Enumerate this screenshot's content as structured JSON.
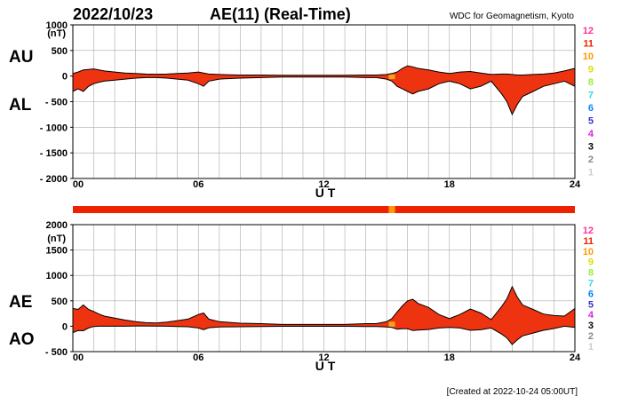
{
  "header": {
    "date": "2022/10/23",
    "title": "AE(11) (Real-Time)",
    "source": "WDC for Geomagnetism, Kyoto"
  },
  "footer": {
    "created": "[Created at 2022-10-24 05:00UT]"
  },
  "colors": {
    "fill": "#ee3311",
    "highlight": "#f5a020",
    "line": "#000000",
    "grid": "#aaaaaa"
  },
  "station_legend": [
    {
      "label": "12",
      "color": "#ff3399"
    },
    {
      "label": "11",
      "color": "#ee2200"
    },
    {
      "label": "10",
      "color": "#ff9900"
    },
    {
      "label": "9",
      "color": "#dddd00"
    },
    {
      "label": "8",
      "color": "#99ee33"
    },
    {
      "label": "7",
      "color": "#33dddd"
    },
    {
      "label": "6",
      "color": "#0088ff"
    },
    {
      "label": "5",
      "color": "#3333cc"
    },
    {
      "label": "4",
      "color": "#dd22dd"
    },
    {
      "label": "3",
      "color": "#000000"
    },
    {
      "label": "2",
      "color": "#888888"
    },
    {
      "label": "1",
      "color": "#cccccc"
    }
  ],
  "station_bar": {
    "default_count": "11",
    "segments": [
      {
        "start": 0,
        "end": 15.1,
        "count": "11"
      },
      {
        "start": 15.1,
        "end": 15.4,
        "count": "10"
      },
      {
        "start": 15.4,
        "end": 24,
        "count": "11"
      }
    ]
  },
  "chart_data": [
    {
      "type": "area",
      "name": "AU/AL",
      "labels": [
        "AU",
        "AL"
      ],
      "unit": "(nT)",
      "xlabel": "U T",
      "xlim": [
        0,
        24
      ],
      "xticks": [
        "00",
        "06",
        "12",
        "18",
        "24"
      ],
      "xtick_values": [
        0,
        6,
        12,
        18,
        24
      ],
      "ylim": [
        -2000,
        1000
      ],
      "yticks": [
        1000,
        500,
        0,
        -500,
        -1000,
        -1500,
        -2000
      ],
      "ytick_labels": [
        "1000",
        "500",
        "0",
        "- 500",
        "- 1000",
        "- 1500",
        "- 2000"
      ],
      "grid": true,
      "x": [
        0,
        0.25,
        0.5,
        0.75,
        1,
        1.25,
        1.5,
        2,
        2.5,
        3,
        3.5,
        4,
        4.5,
        5,
        5.5,
        6,
        6.25,
        6.5,
        7,
        7.5,
        8,
        9,
        10,
        11,
        12,
        13,
        14,
        14.5,
        15,
        15.25,
        15.5,
        15.75,
        16,
        16.25,
        16.5,
        17,
        17.5,
        18,
        18.5,
        19,
        19.5,
        20,
        20.5,
        20.75,
        21,
        21.25,
        21.5,
        22,
        22.5,
        23,
        23.5,
        24
      ],
      "series": [
        {
          "name": "AU",
          "values": [
            50,
            80,
            120,
            130,
            140,
            120,
            100,
            80,
            60,
            50,
            40,
            35,
            40,
            50,
            60,
            80,
            60,
            40,
            30,
            25,
            20,
            20,
            15,
            15,
            15,
            15,
            20,
            20,
            30,
            50,
            80,
            150,
            200,
            180,
            150,
            120,
            80,
            50,
            80,
            90,
            60,
            30,
            40,
            40,
            30,
            20,
            20,
            30,
            40,
            60,
            100,
            150
          ]
        },
        {
          "name": "AL",
          "values": [
            -300,
            -250,
            -300,
            -200,
            -150,
            -120,
            -100,
            -80,
            -60,
            -40,
            -30,
            -30,
            -40,
            -60,
            -80,
            -150,
            -200,
            -100,
            -60,
            -50,
            -40,
            -30,
            -20,
            -20,
            -20,
            -20,
            -30,
            -30,
            -60,
            -100,
            -200,
            -250,
            -300,
            -350,
            -300,
            -250,
            -150,
            -100,
            -150,
            -250,
            -200,
            -100,
            -350,
            -500,
            -750,
            -550,
            -400,
            -300,
            -200,
            -150,
            -100,
            -200
          ]
        }
      ]
    },
    {
      "type": "area",
      "name": "AE/AO",
      "labels": [
        "AE",
        "AO"
      ],
      "unit": "(nT)",
      "xlabel": "U T",
      "xlim": [
        0,
        24
      ],
      "xticks": [
        "00",
        "06",
        "12",
        "18",
        "24"
      ],
      "xtick_values": [
        0,
        6,
        12,
        18,
        24
      ],
      "ylim": [
        -500,
        2000
      ],
      "yticks": [
        2000,
        1500,
        1000,
        500,
        0,
        -500
      ],
      "ytick_labels": [
        "2000",
        "1500",
        "1000",
        "500",
        "0",
        "- 500"
      ],
      "grid": true,
      "x": [
        0,
        0.25,
        0.5,
        0.75,
        1,
        1.25,
        1.5,
        2,
        2.5,
        3,
        3.5,
        4,
        4.5,
        5,
        5.5,
        6,
        6.25,
        6.5,
        7,
        7.5,
        8,
        9,
        10,
        11,
        12,
        13,
        14,
        14.5,
        15,
        15.25,
        15.5,
        15.75,
        16,
        16.25,
        16.5,
        17,
        17.5,
        18,
        18.5,
        19,
        19.5,
        20,
        20.5,
        20.75,
        21,
        21.25,
        21.5,
        22,
        22.5,
        23,
        23.5,
        24
      ],
      "series": [
        {
          "name": "AE",
          "values": [
            350,
            330,
            420,
            330,
            290,
            240,
            200,
            160,
            120,
            90,
            70,
            65,
            80,
            110,
            140,
            230,
            260,
            140,
            90,
            75,
            60,
            50,
            35,
            35,
            35,
            35,
            50,
            50,
            90,
            150,
            280,
            400,
            500,
            530,
            450,
            370,
            230,
            150,
            230,
            340,
            260,
            130,
            390,
            540,
            780,
            570,
            420,
            330,
            240,
            210,
            200,
            350
          ]
        },
        {
          "name": "AO",
          "values": [
            -125,
            -85,
            -90,
            -35,
            -5,
            0,
            0,
            0,
            0,
            5,
            5,
            2,
            0,
            -5,
            -10,
            -35,
            -70,
            -30,
            -15,
            -12,
            -10,
            -5,
            -2,
            -2,
            -2,
            -2,
            -5,
            -5,
            -15,
            -25,
            -60,
            -50,
            -50,
            -85,
            -75,
            -65,
            -35,
            -25,
            -35,
            -80,
            -70,
            -35,
            -155,
            -230,
            -360,
            -265,
            -190,
            -135,
            -80,
            -45,
            0,
            -25
          ]
        }
      ]
    }
  ]
}
